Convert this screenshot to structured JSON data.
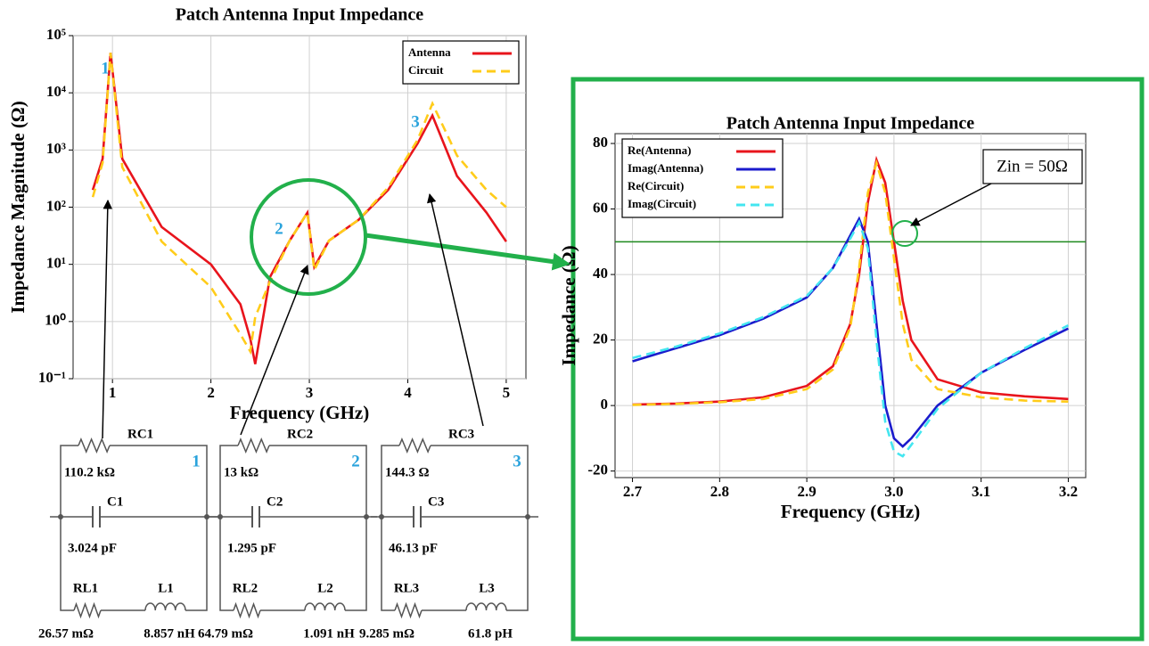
{
  "chart_data": [
    {
      "type": "line",
      "title": "Patch Antenna Input Impedance",
      "x_label": "Frequency (GHz)",
      "y_label": "Impedance Magnitude (Ω)",
      "log_y": true,
      "grid": true,
      "legend": "upper right",
      "xlim": [
        0.6,
        5.2
      ],
      "xticks": [
        1,
        2,
        3,
        4,
        5
      ],
      "ylim": [
        0.1,
        100000
      ],
      "yticks": [
        {
          "value": 0.1,
          "label": "10⁻¹"
        },
        {
          "value": 1,
          "label": "10⁰"
        },
        {
          "value": 10,
          "label": "10¹"
        },
        {
          "value": 100,
          "label": "10²"
        },
        {
          "value": 1000,
          "label": "10³"
        },
        {
          "value": 10000,
          "label": "10⁴"
        },
        {
          "value": 100000,
          "label": "10⁵"
        }
      ],
      "x": [
        0.8,
        0.9,
        0.98,
        1.1,
        1.5,
        2.0,
        2.3,
        2.4,
        2.45,
        2.6,
        2.8,
        2.98,
        3.05,
        3.2,
        3.5,
        3.8,
        4.1,
        4.25,
        4.5,
        4.8,
        5.0
      ],
      "series": [
        {
          "name": "Antenna",
          "color": "#e8141c",
          "style": "solid",
          "values": [
            200,
            700,
            50000,
            700,
            45,
            10,
            2,
            0.5,
            0.18,
            6,
            26,
            80,
            9,
            26,
            60,
            200,
            1300,
            4000,
            350,
            80,
            25
          ]
        },
        {
          "name": "Circuit",
          "color": "#ffcc1a",
          "style": "dashed",
          "values": [
            150,
            600,
            50000,
            500,
            25,
            4,
            0.6,
            0.3,
            1.2,
            5,
            26,
            80,
            8,
            26,
            60,
            220,
            1500,
            6500,
            800,
            200,
            100
          ]
        }
      ],
      "annotations": [
        "1",
        "2",
        "3"
      ]
    },
    {
      "type": "line",
      "title": "Patch Antenna Input Impedance",
      "x_label": "Frequency (GHz)",
      "y_label": "Impedance (Ω)",
      "log_y": false,
      "grid": true,
      "legend": "upper left",
      "xlim": [
        2.68,
        3.22
      ],
      "xticks": [
        2.7,
        2.8,
        2.9,
        {
          "value": 3,
          "label": "3.0"
        },
        3.1,
        3.2
      ],
      "ylim": [
        -22,
        83
      ],
      "yticks": [
        -20,
        0,
        20,
        40,
        60,
        80
      ],
      "x": [
        2.7,
        2.75,
        2.8,
        2.85,
        2.9,
        2.93,
        2.95,
        2.96,
        2.97,
        2.98,
        2.99,
        3.0,
        3.01,
        3.02,
        3.05,
        3.1,
        3.15,
        3.2
      ],
      "series": [
        {
          "name": "Re(Antenna)",
          "color": "#e8141c",
          "style": "solid",
          "values": [
            0.3,
            0.6,
            1.2,
            2.5,
            6,
            12,
            25,
            40,
            62,
            75,
            68,
            50,
            32,
            20,
            8,
            4,
            2.8,
            2
          ]
        },
        {
          "name": "Imag(Antenna)",
          "color": "#1b1bcc",
          "style": "solid",
          "values": [
            13.5,
            17.5,
            21.5,
            26.5,
            33,
            42,
            52,
            57,
            50,
            25,
            0,
            -10,
            -12.5,
            -10,
            0,
            10,
            17,
            23.5
          ]
        },
        {
          "name": "Re(Circuit)",
          "color": "#ffcc1a",
          "style": "dashed",
          "values": [
            0.2,
            0.5,
            1,
            2,
            5,
            11,
            24,
            42,
            65,
            74,
            65,
            45,
            25,
            14,
            5,
            2.5,
            1.5,
            1.2
          ]
        },
        {
          "name": "Imag(Circuit)",
          "color": "#44e6f0",
          "style": "dashed",
          "values": [
            14.5,
            18,
            22,
            27,
            33.5,
            42,
            51,
            56,
            48,
            20,
            -5,
            -14,
            -15.5,
            -12,
            -1,
            10,
            17.5,
            24.5
          ]
        }
      ],
      "reference_line": {
        "value": 50,
        "color": "#1e8a1e"
      },
      "annotations": [
        "Zin = 50Ω"
      ]
    }
  ],
  "circuits": [
    {
      "number": "1",
      "rc": "RC1",
      "rc_value": "110.2 kΩ",
      "c": "C1",
      "c_value": "3.024 pF",
      "rl": "RL1",
      "rl_value": "26.57 mΩ",
      "l": "L1",
      "l_value": "8.857 nH"
    },
    {
      "number": "2",
      "rc": "RC2",
      "rc_value": "13 kΩ",
      "c": "C2",
      "c_value": "1.295 pF",
      "rl": "RL2",
      "rl_value": "64.79 mΩ",
      "l": "L2",
      "l_value": "1.091 nH"
    },
    {
      "number": "3",
      "rc": "RC3",
      "rc_value": "144.3 Ω",
      "c": "C3",
      "c_value": "46.13 pF",
      "rl": "RL3",
      "rl_value": "9.285 mΩ",
      "l": "L3",
      "l_value": "61.8 pH"
    }
  ]
}
